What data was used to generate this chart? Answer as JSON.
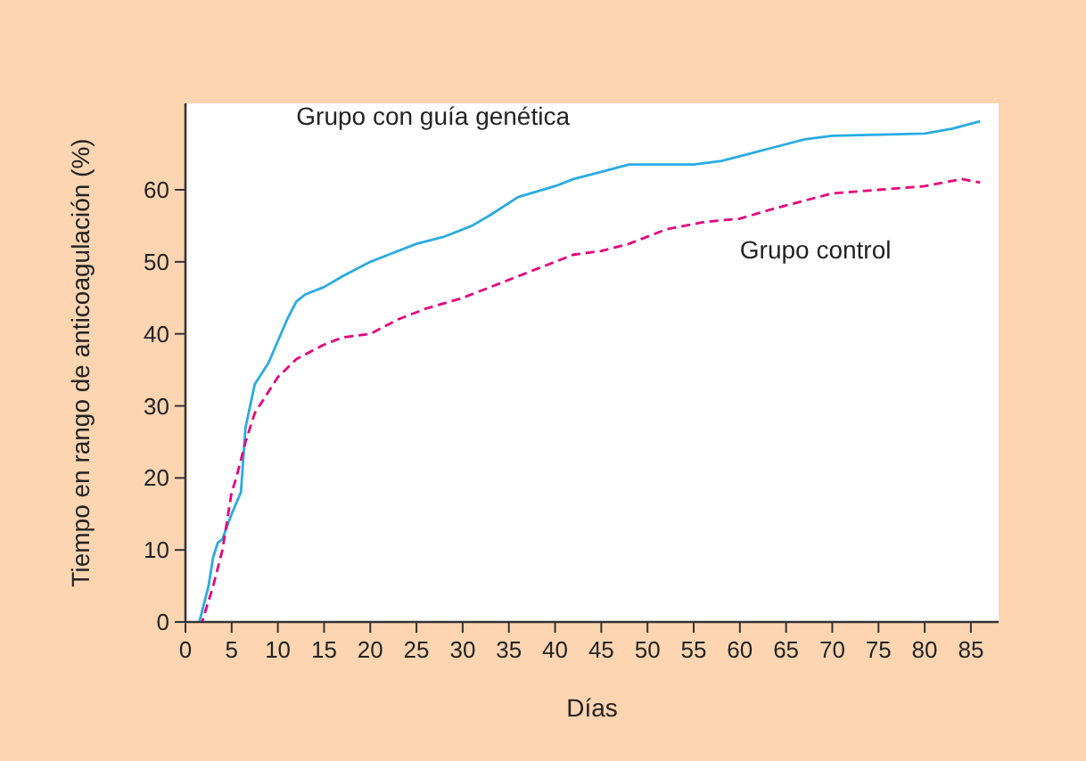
{
  "chart_data": {
    "type": "line",
    "xlabel": "Días",
    "ylabel": "Tiempo en rango de anticoagulación (%)",
    "xlim": [
      0,
      88
    ],
    "ylim": [
      0,
      72
    ],
    "xticks": [
      0,
      5,
      10,
      15,
      20,
      25,
      30,
      35,
      40,
      45,
      50,
      55,
      60,
      65,
      70,
      75,
      80,
      85
    ],
    "yticks": [
      0,
      10,
      20,
      30,
      40,
      50,
      60
    ],
    "grid": false,
    "marker": "none",
    "series": [
      {
        "name": "Grupo con guía genética",
        "color": "#29abe2",
        "line_style": "solid",
        "x": [
          1.5,
          2.5,
          3,
          3.5,
          4,
          5,
          6,
          6.5,
          7.5,
          9,
          10,
          11,
          12,
          13,
          15,
          17,
          20,
          22,
          25,
          28,
          31,
          33,
          36,
          40,
          42,
          45,
          48,
          55,
          58,
          61,
          64,
          67,
          70,
          80,
          83,
          86
        ],
        "values": [
          0,
          5,
          9,
          11,
          11.5,
          15,
          18,
          27,
          33,
          36,
          39,
          42,
          44.5,
          45.5,
          46.5,
          48,
          50,
          51,
          52.5,
          53.5,
          55,
          56.5,
          59,
          60.5,
          61.5,
          62.5,
          63.5,
          63.5,
          64,
          65,
          66,
          67,
          67.5,
          67.8,
          68.5,
          69.5
        ]
      },
      {
        "name": "Grupo control",
        "color": "#e6007e",
        "line_style": "dashed",
        "x": [
          1.8,
          3,
          4,
          5,
          5.5,
          6.5,
          7.5,
          9,
          10,
          12,
          15,
          17,
          20,
          23,
          26,
          30,
          33,
          36,
          40,
          42,
          45,
          48,
          52,
          56,
          60,
          64,
          70,
          75,
          80,
          84,
          86
        ],
        "values": [
          0,
          5,
          10,
          18,
          20,
          25,
          29,
          32,
          34,
          36.5,
          38.5,
          39.5,
          40,
          42,
          43.5,
          45,
          46.5,
          48,
          50,
          51,
          51.5,
          52.5,
          54.5,
          55.5,
          56,
          57.5,
          59.5,
          60,
          60.5,
          61.5,
          61
        ]
      }
    ]
  }
}
